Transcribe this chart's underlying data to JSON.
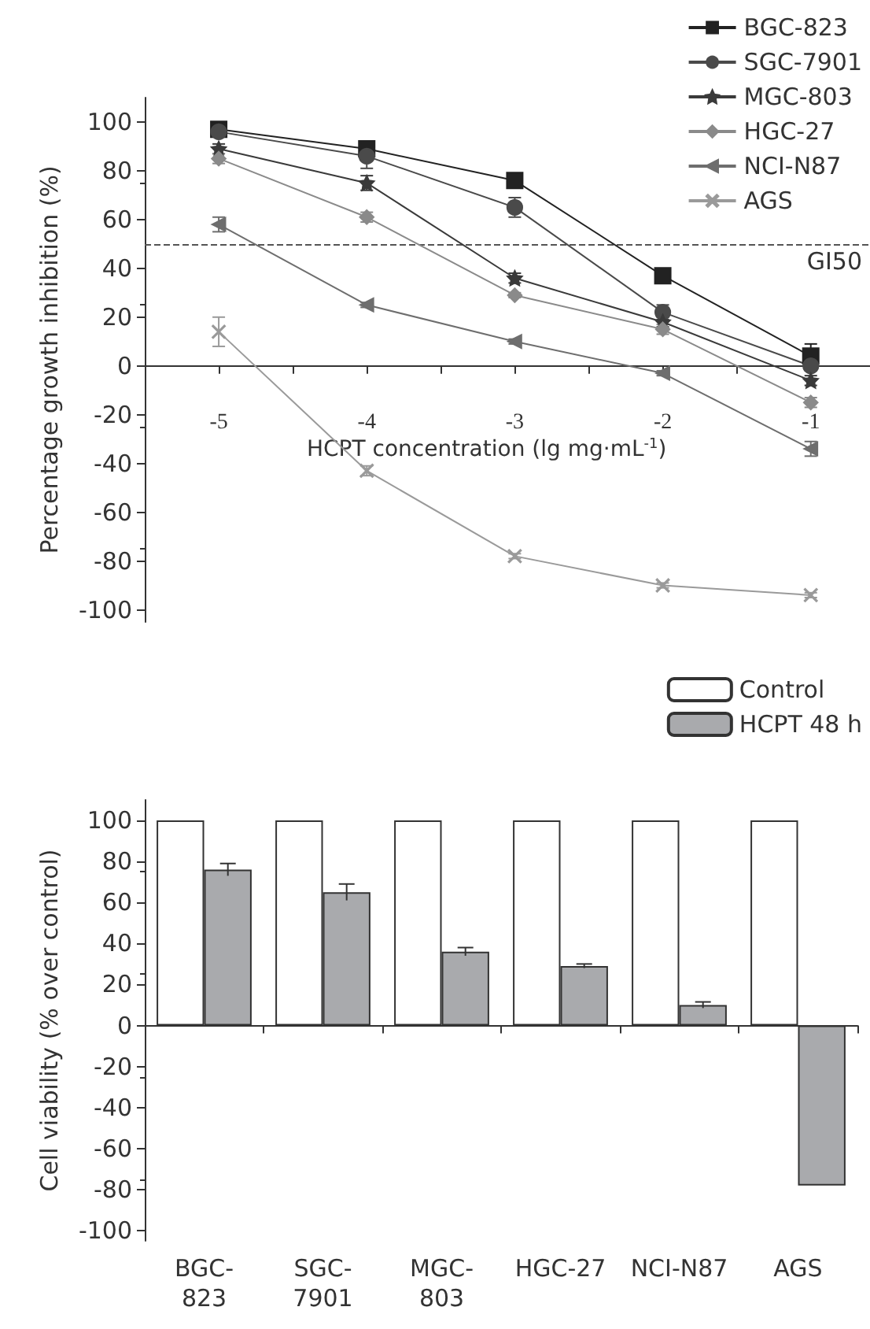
{
  "chart_data": [
    {
      "type": "line",
      "xlabel": "HCPT concentration (lg mg·mL$^{-1}$)",
      "ylabel": "Percentage growth inhibition (%)",
      "x": [
        -5,
        -4,
        -3,
        -2,
        -1
      ],
      "series": [
        {
          "name": "BGC-823",
          "color": "#222222",
          "marker": "square",
          "values": [
            97,
            89,
            76,
            37,
            4
          ],
          "errors": [
            1.5,
            3,
            3,
            1,
            5
          ]
        },
        {
          "name": "SGC-7901",
          "color": "#4a4a4a",
          "marker": "circle",
          "values": [
            96,
            86,
            65,
            22,
            0
          ],
          "errors": [
            2,
            5,
            4,
            3,
            2
          ]
        },
        {
          "name": "MGC-803",
          "color": "#3a3a3a",
          "marker": "star",
          "values": [
            89,
            75,
            36,
            18,
            -6
          ],
          "errors": [
            2,
            3,
            2,
            2,
            2
          ]
        },
        {
          "name": "HGC-27",
          "color": "#8a8a8a",
          "marker": "diamond",
          "values": [
            85,
            61,
            29,
            15,
            -15
          ],
          "errors": [
            2,
            2,
            1,
            2,
            2
          ]
        },
        {
          "name": "NCI-N87",
          "color": "#6e6e6e",
          "marker": "triangle",
          "values": [
            58,
            25,
            10,
            -3,
            -34
          ],
          "errors": [
            3,
            1,
            1,
            1,
            3
          ]
        },
        {
          "name": "AGS",
          "color": "#9a9a9a",
          "marker": "cross",
          "values": [
            14,
            -43,
            -78,
            -90,
            -94
          ],
          "errors": [
            6,
            2,
            1,
            1,
            1
          ]
        }
      ],
      "xlim": [
        -5.5,
        -0.6
      ],
      "xticks": [
        -5,
        {
          "value": -4.5,
          "label": null
        },
        -4,
        {
          "value": -3.5,
          "label": null
        },
        -3,
        {
          "value": -2.5,
          "label": null
        },
        -2,
        {
          "value": -1.5,
          "label": null
        },
        -1
      ],
      "ylim": [
        -105,
        110
      ],
      "yticks": [
        -100,
        -80,
        -60,
        -40,
        -20,
        0,
        20,
        40,
        60,
        80,
        100
      ],
      "ref_lines": [
        {
          "axis": "y",
          "value": 50,
          "label": "GI50",
          "line_style": "dashed",
          "color": "#555555"
        }
      ],
      "legend": "top right",
      "line_style": "solid"
    },
    {
      "type": "bar",
      "ylabel": "Cell viability (% over control)",
      "categories": [
        "BGC-\n823",
        "SGC-\n7901",
        "MGC-\n803",
        "HGC-27",
        "NCI-N87",
        "AGS"
      ],
      "series": [
        {
          "name": "Control",
          "color": "#ffffff",
          "values": [
            100,
            100,
            100,
            100,
            100,
            100
          ]
        },
        {
          "name": "HCPT 48 h",
          "color": "#a9aaad",
          "values": [
            76,
            65,
            36,
            29,
            10,
            -78
          ],
          "errors": [
            3,
            4,
            2,
            1,
            1.5,
            null
          ]
        }
      ],
      "ylim": [
        -105,
        110
      ],
      "yticks": [
        -100,
        -80,
        -60,
        -40,
        -20,
        0,
        20,
        40,
        60,
        80,
        100
      ],
      "legend": "top right"
    }
  ]
}
